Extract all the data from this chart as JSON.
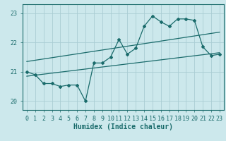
{
  "title": "",
  "xlabel": "Humidex (Indice chaleur)",
  "ylabel": "",
  "xlim": [
    -0.5,
    23.5
  ],
  "ylim": [
    19.7,
    23.3
  ],
  "yticks": [
    20,
    21,
    22,
    23
  ],
  "xticks": [
    0,
    1,
    2,
    3,
    4,
    5,
    6,
    7,
    8,
    9,
    10,
    11,
    12,
    13,
    14,
    15,
    16,
    17,
    18,
    19,
    20,
    21,
    22,
    23
  ],
  "bg_color": "#cce8ec",
  "line_color": "#1a6b6b",
  "grid_color": "#aacdd4",
  "main_series_x": [
    0,
    1,
    2,
    3,
    4,
    5,
    6,
    7,
    8,
    9,
    10,
    11,
    12,
    13,
    14,
    15,
    16,
    17,
    18,
    19,
    20,
    21,
    22,
    23
  ],
  "main_series_y": [
    21.0,
    20.9,
    20.6,
    20.6,
    20.5,
    20.55,
    20.55,
    20.0,
    21.3,
    21.3,
    21.5,
    22.1,
    21.6,
    21.8,
    22.55,
    22.9,
    22.7,
    22.55,
    22.8,
    22.8,
    22.75,
    21.85,
    21.55,
    21.6
  ],
  "upper_line_x": [
    0,
    23
  ],
  "upper_line_y": [
    21.35,
    22.35
  ],
  "lower_line_x": [
    0,
    23
  ],
  "lower_line_y": [
    20.85,
    21.65
  ],
  "font_family": "monospace",
  "tick_fontsize": 6.0,
  "xlabel_fontsize": 7.0
}
